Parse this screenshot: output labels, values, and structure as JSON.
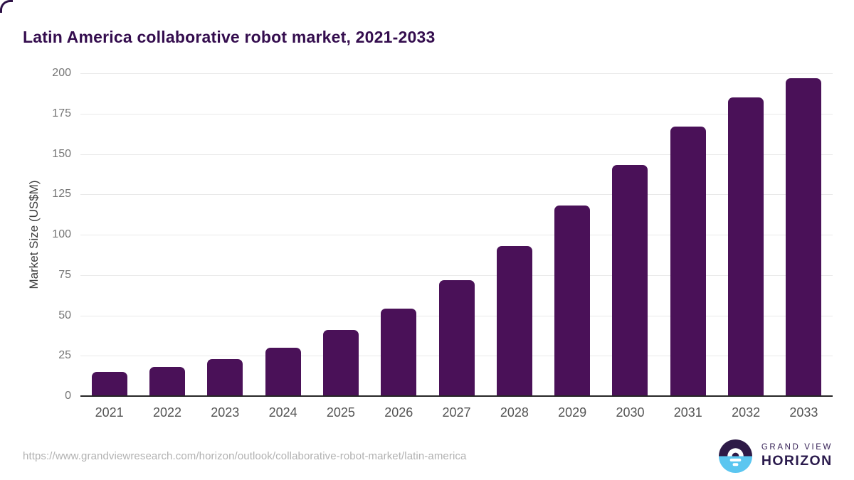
{
  "title": "Latin America collaborative robot market, 2021-2033",
  "source_url": "https://www.grandviewresearch.com/horizon/outlook/collaborative-robot-market/latin-america",
  "branding": {
    "line1": "GRAND VIEW",
    "line2": "HORIZON",
    "logo_colors": {
      "top": "#2e1a47",
      "bottom": "#5bc6f0",
      "glyph": "#ffffff"
    }
  },
  "colors": {
    "bar": "#4a1158",
    "title_text": "#340d4e",
    "axis_line": "#262626",
    "gridline": "#e9e9e9",
    "tick_text": "#757575",
    "x_tick_text": "#545454",
    "url_text": "#b1b1b1"
  },
  "chart_data": {
    "type": "bar",
    "title": "Latin America collaborative robot market, 2021-2033",
    "xlabel": "",
    "ylabel": "Market Size (US$M)",
    "categories": [
      "2021",
      "2022",
      "2023",
      "2024",
      "2025",
      "2026",
      "2027",
      "2028",
      "2029",
      "2030",
      "2031",
      "2032",
      "2033"
    ],
    "values": [
      15,
      18,
      23,
      30,
      41,
      54,
      72,
      93,
      118,
      143,
      167,
      185,
      197
    ],
    "ylim": [
      0,
      200
    ],
    "yticks": [
      0,
      25,
      50,
      75,
      100,
      125,
      150,
      175,
      200
    ],
    "grid": true,
    "legend": "none",
    "bar_color": "#4a1158"
  }
}
